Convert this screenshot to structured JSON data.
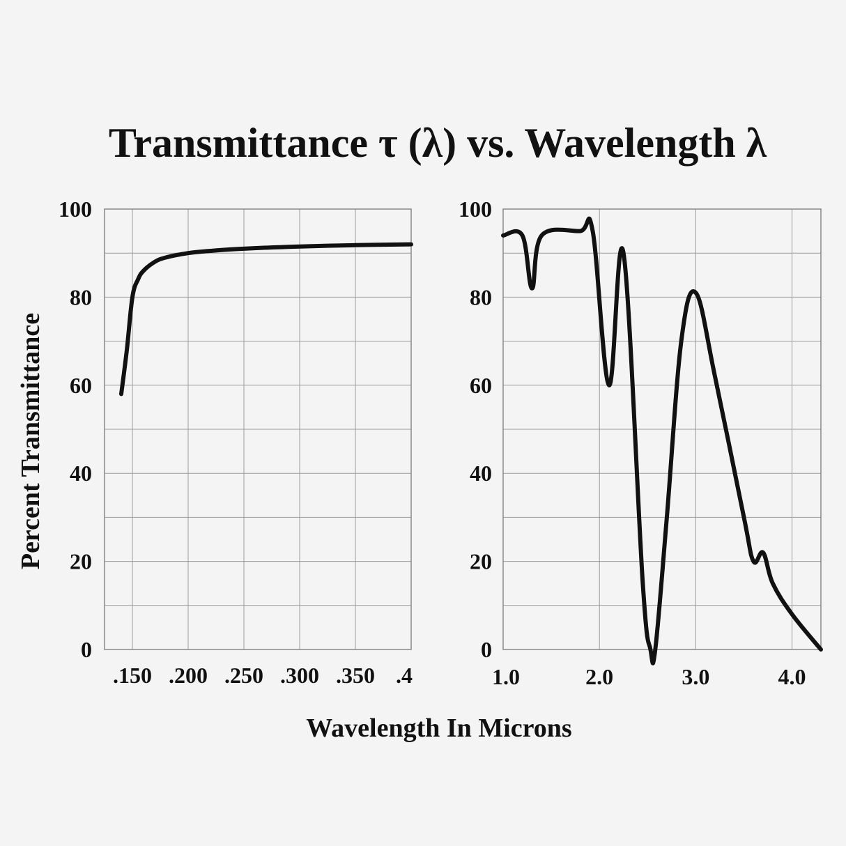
{
  "chart_data": {
    "title": "Transmittance τ (λ)   vs. Wavelength λ",
    "ylabel": "Percent Transmittance",
    "xlabel": "Wavelength In Microns",
    "colors": {
      "background": "#f4f4f4",
      "curve": "#111111",
      "grid": "#9a9a9a"
    },
    "panels": [
      {
        "type": "line",
        "grid": true,
        "xlim": [
          0.125,
          0.4
        ],
        "ylim": [
          0,
          100
        ],
        "x_ticks": [
          0.15,
          0.2,
          0.25,
          0.3,
          0.35,
          0.4
        ],
        "x_tick_labels": [
          ".150",
          ".200",
          ".250",
          ".300",
          ".350",
          ".4"
        ],
        "y_ticks": [
          0,
          20,
          40,
          60,
          80,
          100
        ],
        "y_tick_labels": [
          "0",
          "20",
          "40",
          "60",
          "80",
          "100"
        ],
        "x": [
          0.14,
          0.145,
          0.15,
          0.155,
          0.16,
          0.17,
          0.18,
          0.2,
          0.22,
          0.25,
          0.3,
          0.35,
          0.4
        ],
        "y": [
          58,
          68,
          80,
          84,
          86,
          88,
          89,
          90,
          90.5,
          91,
          91.5,
          91.8,
          92
        ]
      },
      {
        "type": "line",
        "grid": true,
        "xlim": [
          1.0,
          4.3
        ],
        "ylim": [
          0,
          100
        ],
        "x_ticks": [
          1.0,
          2.0,
          3.0,
          4.0
        ],
        "x_tick_labels": [
          "1.0",
          "2.0",
          "3.0",
          "4.0"
        ],
        "y_ticks": [
          0,
          20,
          40,
          60,
          80,
          100
        ],
        "y_tick_labels": [
          "0",
          "20",
          "40",
          "60",
          "80",
          "100"
        ],
        "x": [
          1.0,
          1.2,
          1.3,
          1.4,
          1.8,
          1.93,
          2.1,
          2.25,
          2.45,
          2.53,
          2.58,
          2.7,
          2.85,
          3.0,
          3.2,
          3.5,
          3.6,
          3.7,
          3.8,
          4.0,
          4.3
        ],
        "y": [
          94,
          94,
          82,
          94,
          95,
          95,
          60,
          90,
          15,
          0,
          0,
          30,
          70,
          81,
          62,
          30,
          20,
          22,
          15,
          8,
          0
        ]
      }
    ]
  }
}
